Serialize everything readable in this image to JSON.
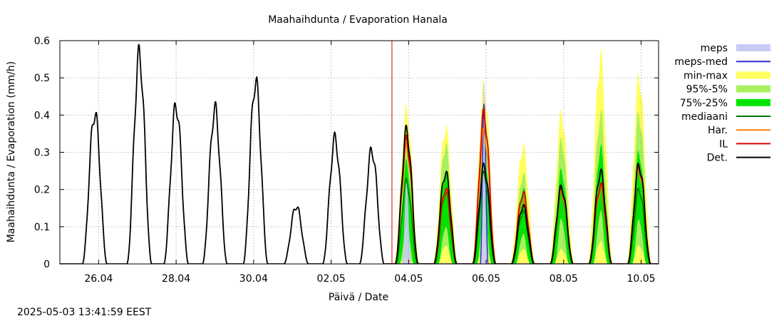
{
  "chart_data": {
    "type": "line",
    "title": "Maahaihdunta / Evaporation  Hanala",
    "xlabel": "Päivä / Date",
    "ylabel": "Maahaihdunta / Evaporation (mm/h)",
    "xlim": [
      0,
      15.45
    ],
    "ylim": [
      0,
      0.6
    ],
    "yticks": [
      0,
      0.1,
      0.2,
      0.3,
      0.4,
      0.5,
      0.6
    ],
    "ytick_labels": [
      "0",
      "0.1",
      "0.2",
      "0.3",
      "0.4",
      "0.5",
      "0.6"
    ],
    "xticks": [
      {
        "label": "26.04",
        "day": 1
      },
      {
        "label": "28.04",
        "day": 3
      },
      {
        "label": "30.04",
        "day": 5
      },
      {
        "label": "02.05",
        "day": 7
      },
      {
        "label": "04.05",
        "day": 9
      },
      {
        "label": "06.05",
        "day": 11
      },
      {
        "label": "08.05",
        "day": 13
      },
      {
        "label": "10.05",
        "day": 15
      }
    ],
    "now_day": 8.57,
    "forecast_start_day": 8.4,
    "legend": [
      {
        "label": "meps",
        "kind": "band",
        "color": "#c8ccf5"
      },
      {
        "label": "meps-med",
        "kind": "line",
        "color": "#3030c8"
      },
      {
        "label": "min-max",
        "kind": "band",
        "color": "#ffff60"
      },
      {
        "label": "95%-5%",
        "kind": "band",
        "color": "#a8f060"
      },
      {
        "label": "75%-25%",
        "kind": "band",
        "color": "#00e400"
      },
      {
        "label": "mediaani",
        "kind": "line",
        "color": "#007800"
      },
      {
        "label": "Har.",
        "kind": "line",
        "color": "#ff8000"
      },
      {
        "label": "IL",
        "kind": "line",
        "color": "#e00000"
      },
      {
        "label": "Det.",
        "kind": "line",
        "color": "#000000"
      }
    ],
    "history_peaks": [
      {
        "day": 0.9,
        "value": 0.405
      },
      {
        "day": 2.05,
        "value": 0.56
      },
      {
        "day": 3.0,
        "value": 0.425
      },
      {
        "day": 4.0,
        "value": 0.415
      },
      {
        "day": 5.05,
        "value": 0.49
      },
      {
        "day": 6.1,
        "value": 0.155
      },
      {
        "day": 7.1,
        "value": 0.335
      },
      {
        "day": 8.05,
        "value": 0.305
      }
    ],
    "forecast_days": [
      {
        "day": 8.95,
        "minmax": [
          0,
          0.41
        ],
        "p95": [
          0.02,
          0.35
        ],
        "p75": [
          0.1,
          0.27
        ],
        "median": 0.22,
        "det": 0.355,
        "il": 0.33,
        "har": 0.31,
        "meps": 0.21
      },
      {
        "day": 9.95,
        "minmax": [
          0,
          0.365
        ],
        "p95": [
          0.05,
          0.32
        ],
        "p75": [
          0.1,
          0.24
        ],
        "median": 0.19,
        "det": 0.245,
        "il": 0.2,
        "har": 0.195
      },
      {
        "day": 10.95,
        "minmax": [
          0,
          0.475
        ],
        "p95": [
          0.05,
          0.41
        ],
        "p75": [
          0.15,
          0.3
        ],
        "median": 0.24,
        "det": 0.26,
        "il": 0.4,
        "har": 0.35,
        "meps": 0.48,
        "meps_med": 0.42
      },
      {
        "day": 11.95,
        "minmax": [
          0,
          0.315
        ],
        "p95": [
          0.04,
          0.24
        ],
        "p75": [
          0.08,
          0.2
        ],
        "median": 0.14,
        "det": 0.155,
        "il": 0.19,
        "har": 0.17
      },
      {
        "day": 12.95,
        "minmax": [
          0,
          0.4
        ],
        "p95": [
          0.04,
          0.33
        ],
        "p75": [
          0.12,
          0.25
        ],
        "median": 0.19,
        "det": 0.205,
        "il": 0.2,
        "har": 0.19
      },
      {
        "day": 13.95,
        "minmax": [
          0,
          0.555
        ],
        "p95": [
          0.06,
          0.4
        ],
        "p75": [
          0.14,
          0.31
        ],
        "median": 0.21,
        "det": 0.245,
        "il": 0.21,
        "har": 0.2
      },
      {
        "day": 14.95,
        "minmax": [
          0,
          0.5
        ],
        "p95": [
          0.05,
          0.4
        ],
        "p75": [
          0.12,
          0.3
        ],
        "median": 0.2,
        "det": 0.265,
        "il": 0.26,
        "har": 0.25
      }
    ]
  },
  "timestamp": "2025-05-03 13:41:59 EEST"
}
